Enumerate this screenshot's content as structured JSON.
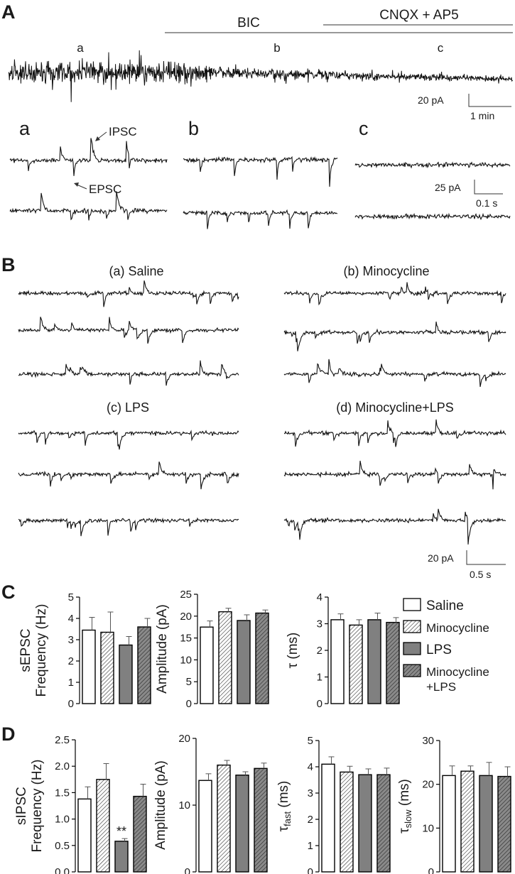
{
  "panels": {
    "A": {
      "letter": "A",
      "bic_label": "BIC",
      "cnqx_label": "CNQX + AP5",
      "segment_labels": [
        "a",
        "b",
        "c"
      ],
      "scale_main": {
        "amp": "20 pA",
        "time": "1 min"
      },
      "insets": [
        {
          "letter": "a",
          "ipsc": "IPSC",
          "epsc": "EPSC"
        },
        {
          "letter": "b"
        },
        {
          "letter": "c"
        }
      ],
      "scale_inset": {
        "amp": "25 pA",
        "time": "0.1 s"
      }
    },
    "B": {
      "letter": "B",
      "groups": [
        {
          "title": "(a) Saline"
        },
        {
          "title": "(b) Minocycline"
        },
        {
          "title": "(c) LPS"
        },
        {
          "title": "(d) Minocycline+LPS"
        }
      ],
      "scale": {
        "amp": "20 pA",
        "time": "0.5 s"
      }
    },
    "C": {
      "letter": "C",
      "legend": {
        "items": [
          {
            "label": "Saline",
            "style": "open"
          },
          {
            "label": "Minocycline",
            "style": "hatch"
          },
          {
            "label": "LPS",
            "style": "gray"
          },
          {
            "label": "Minocycline",
            "label2": "+LPS",
            "style": "grayhatch"
          }
        ]
      }
    },
    "D": {
      "letter": "D"
    }
  },
  "colors": {
    "trace": "#111111",
    "gray_bar": "#808080",
    "dark_hatch": "#4a4a4a"
  },
  "chart_data": [
    {
      "type": "bar",
      "panel": "C",
      "ylabel": "sEPSC",
      "ylabel2": "Frequency (Hz)",
      "ylim": [
        0,
        5
      ],
      "yticks": [
        0,
        1,
        2,
        3,
        4,
        5
      ],
      "yticklabels": [
        "0",
        "1",
        "2",
        "3",
        "4",
        "5"
      ],
      "categories": [
        "Saline",
        "Minocycline",
        "LPS",
        "Minocycline+LPS"
      ],
      "values": [
        3.45,
        3.35,
        2.75,
        3.6
      ],
      "errors": [
        0.6,
        0.95,
        0.4,
        0.4
      ],
      "annotations": []
    },
    {
      "type": "bar",
      "panel": "C",
      "ylabel": "Amplitude (pA)",
      "ylim": [
        0,
        25
      ],
      "yticks": [
        0,
        5,
        10,
        15,
        20,
        25
      ],
      "yticklabels": [
        "0",
        "5",
        "10",
        "15",
        "20",
        "25"
      ],
      "categories": [
        "Saline",
        "Minocycline",
        "LPS",
        "Minocycline+LPS"
      ],
      "values": [
        17.5,
        21.0,
        19.0,
        20.7
      ],
      "errors": [
        1.4,
        0.8,
        1.3,
        0.7
      ],
      "annotations": []
    },
    {
      "type": "bar",
      "panel": "C",
      "ylabel": "τ (ms)",
      "ylim": [
        0,
        4
      ],
      "yticks": [
        0,
        1,
        2,
        3,
        4
      ],
      "yticklabels": [
        "0",
        "1",
        "2",
        "3",
        "4"
      ],
      "categories": [
        "Saline",
        "Minocycline",
        "LPS",
        "Minocycline+LPS"
      ],
      "values": [
        3.15,
        2.95,
        3.15,
        3.05
      ],
      "errors": [
        0.22,
        0.2,
        0.25,
        0.18
      ],
      "annotations": []
    },
    {
      "type": "bar",
      "panel": "D",
      "ylabel": "sIPSC",
      "ylabel2": "Frequency (Hz)",
      "ylim": [
        0,
        2.5
      ],
      "yticks": [
        0,
        0.5,
        1,
        1.5,
        2,
        2.5
      ],
      "yticklabels": [
        "0.0",
        "0.5",
        "1.0",
        "1.5",
        "2.0",
        "2.5"
      ],
      "categories": [
        "Saline",
        "Minocycline",
        "LPS",
        "Minocycline+LPS"
      ],
      "values": [
        1.38,
        1.75,
        0.58,
        1.43
      ],
      "errors": [
        0.23,
        0.3,
        0.05,
        0.23
      ],
      "annotations": [
        {
          "bar": 2,
          "text": "**"
        }
      ]
    },
    {
      "type": "bar",
      "panel": "D",
      "ylabel": "Amplitude (pA)",
      "ylim": [
        0,
        20
      ],
      "yticks": [
        0,
        10,
        20
      ],
      "yticklabels": [
        "0",
        "10",
        "20"
      ],
      "categories": [
        "Saline",
        "Minocycline",
        "LPS",
        "Minocycline+LPS"
      ],
      "values": [
        13.7,
        16.0,
        14.5,
        15.5
      ],
      "errors": [
        1.0,
        0.7,
        0.5,
        0.8
      ],
      "annotations": []
    },
    {
      "type": "bar",
      "panel": "D",
      "ylabel": "τ",
      "ylabel_sub": "fast",
      "ylabel_unit": " (ms)",
      "ylim": [
        0,
        5
      ],
      "yticks": [
        0,
        1,
        2,
        3,
        4,
        5
      ],
      "yticklabels": [
        "0",
        "1",
        "2",
        "3",
        "4",
        "5"
      ],
      "categories": [
        "Saline",
        "Minocycline",
        "LPS",
        "Minocycline+LPS"
      ],
      "values": [
        4.1,
        3.8,
        3.7,
        3.7
      ],
      "errors": [
        0.28,
        0.22,
        0.22,
        0.25
      ],
      "annotations": []
    },
    {
      "type": "bar",
      "panel": "D",
      "ylabel": "τ",
      "ylabel_sub": "slow",
      "ylabel_unit": " (ms)",
      "ylim": [
        0,
        30
      ],
      "yticks": [
        0,
        10,
        20,
        30
      ],
      "yticklabels": [
        "0",
        "10",
        "20",
        "30"
      ],
      "categories": [
        "Saline",
        "Minocycline",
        "LPS",
        "Minocycline+LPS"
      ],
      "values": [
        22.0,
        23.0,
        22.0,
        21.8
      ],
      "errors": [
        2.2,
        1.2,
        3.0,
        2.2
      ],
      "annotations": []
    }
  ]
}
